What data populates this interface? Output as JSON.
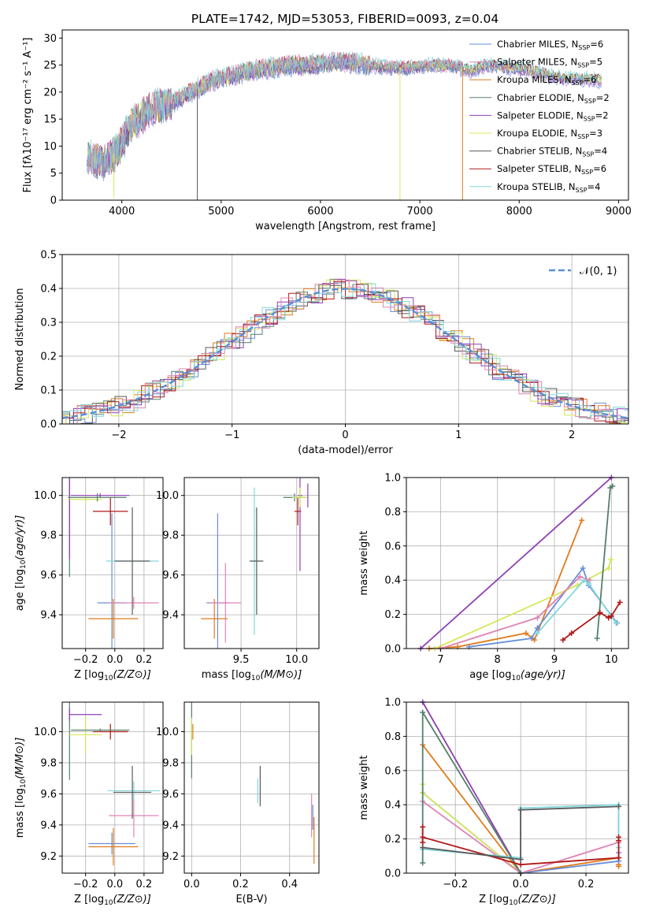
{
  "palette": [
    "#6a8fd8",
    "#e07b1a",
    "#55806a",
    "#8e3fb3",
    "#d6e85a",
    "#5a5a5a",
    "#b01818",
    "#e084b6",
    "#80d8dc"
  ],
  "chart_data": [
    {
      "id": "spectrum",
      "type": "line",
      "title": "PLATE=1742, MJD=53053, FIBERID=0093, z=0.04",
      "xlabel": "wavelength [Angstrom, rest frame]",
      "ylabel": "Flux [f",
      "ylabel_tex": "λ10⁻¹⁷ erg cm⁻² s⁻¹ A⁻¹]",
      "xlim": [
        3400,
        9100
      ],
      "ylim": [
        0,
        31.5
      ],
      "xticks": [
        4000,
        5000,
        6000,
        7000,
        8000,
        9000
      ],
      "yticks": [
        0,
        5,
        10,
        15,
        20,
        25,
        30
      ],
      "grid": false,
      "legend_position": "upper-right",
      "legend": [
        {
          "name": "Chabrier MILES, N",
          "sub": "SSP",
          "suffix": "=6",
          "color": "#6a8fd8"
        },
        {
          "name": "Salpeter MILES, N",
          "sub": "SSP",
          "suffix": "=5",
          "color": "#e084b6"
        },
        {
          "name": "Kroupa MILES, N",
          "sub": "SSP",
          "suffix": "=6",
          "color": "#e07b1a"
        },
        {
          "name": "Chabrier ELODIE, N",
          "sub": "SSP",
          "suffix": "=2",
          "color": "#55806a"
        },
        {
          "name": "Salpeter ELODIE, N",
          "sub": "SSP",
          "suffix": "=2",
          "color": "#8e3fb3"
        },
        {
          "name": "Kroupa ELODIE, N",
          "sub": "SSP",
          "suffix": "=3",
          "color": "#d6e85a"
        },
        {
          "name": "Chabrier STELIB, N",
          "sub": "SSP",
          "suffix": "=4",
          "color": "#5a5a5a"
        },
        {
          "name": "Salpeter STELIB, N",
          "sub": "SSP",
          "suffix": "=6",
          "color": "#b01818"
        },
        {
          "name": "Kroupa STELIB, N",
          "sub": "SSP",
          "suffix": "=4",
          "color": "#80d8dc"
        }
      ],
      "continuum_x": [
        3650,
        3800,
        3950,
        4100,
        4300,
        4500,
        4700,
        4900,
        5100,
        5300,
        5500,
        5700,
        5900,
        6100,
        6300,
        6500,
        6700,
        6900,
        7100,
        7300,
        7500,
        7700,
        7900,
        8100,
        8300,
        8500,
        8700,
        8830
      ],
      "continuum_y": [
        8,
        7,
        9,
        14,
        17,
        18,
        20,
        22,
        23,
        24,
        24.5,
        25,
        25,
        25.5,
        25.5,
        25,
        24.5,
        24.5,
        25,
        25,
        24,
        25,
        24.5,
        24,
        23,
        22.5,
        22.5,
        22
      ],
      "drops": [
        {
          "x": 4760,
          "y": 0,
          "series": 5
        },
        {
          "x": 6800,
          "y": 0,
          "series": 4
        },
        {
          "x": 7430,
          "y": 0,
          "series": 1
        },
        {
          "x": 3920,
          "y": 0.5,
          "series": 4
        }
      ]
    },
    {
      "id": "residuals",
      "type": "step",
      "xlabel": "(data-model)/error",
      "ylabel": "Normed distribution",
      "xlim": [
        -2.5,
        2.5
      ],
      "ylim": [
        0,
        0.5
      ],
      "xticks": [
        -2,
        -1,
        0,
        1,
        2
      ],
      "yticks": [
        0,
        0.1,
        0.2,
        0.3,
        0.4,
        0.5
      ],
      "grid": true,
      "legend_position": "upper-right",
      "legend": [
        {
          "name": "𝒩(0, 1)",
          "color": "#5a8ed6",
          "style": "dashed"
        }
      ],
      "bin_width": 0.1
    },
    {
      "id": "age-vs-Z",
      "type": "errorbar",
      "xlabel": "Z [log",
      "xlabel_tex": "10(Z/Z⊙)]",
      "ylabel": "age  [log",
      "ylabel_tex": "10(age/yr)]",
      "xlim": [
        -0.36,
        0.33
      ],
      "ylim": [
        9.23,
        10.09
      ],
      "xticks": [
        -0.2,
        0.0,
        0.2
      ],
      "yticks": [
        9.4,
        9.6,
        9.8,
        10.0
      ],
      "grid": true,
      "points": [
        {
          "x": -0.01,
          "y": 9.38,
          "xerr": 0.17,
          "yerr": 0.1,
          "series": 1
        },
        {
          "x": -0.02,
          "y": 9.46,
          "xerr": 0.1,
          "yerr": 0.45,
          "series": 0
        },
        {
          "x": 0.13,
          "y": 9.46,
          "xerr": 0.17,
          "yerr": 0.03,
          "series": 7
        },
        {
          "x": 0.12,
          "y": 9.67,
          "xerr": 0.18,
          "yerr": 0.01,
          "series": 8
        },
        {
          "x": 0.12,
          "y": 9.67,
          "xerr": 0.12,
          "yerr": 0.27,
          "series": 5
        },
        {
          "x": -0.03,
          "y": 9.92,
          "xerr": 0.12,
          "yerr": 0.07,
          "series": 6
        },
        {
          "x": -0.31,
          "y": 9.99,
          "xerr": 0.0,
          "yerr": 0.4,
          "series": 2
        },
        {
          "x": -0.31,
          "y": 10.0,
          "xerr": 0.0,
          "yerr": 0.32,
          "series": 3
        },
        {
          "x": -0.2,
          "y": 9.98,
          "xerr": 0.11,
          "yerr": 0.02,
          "series": 4
        },
        {
          "x": -0.1,
          "y": 10.0,
          "xerr": 0.2,
          "yerr": 0.01,
          "series": 3
        },
        {
          "x": -0.12,
          "y": 9.99,
          "xerr": 0.2,
          "yerr": 0.02,
          "series": 2
        }
      ]
    },
    {
      "id": "age-vs-mass",
      "type": "errorbar",
      "xlabel": "mass [log",
      "xlabel_tex": "10(M/M⊙)]",
      "xlim": [
        8.99,
        10.2
      ],
      "ylim": [
        9.23,
        10.09
      ],
      "xticks": [
        9.5,
        10.0
      ],
      "yticks": [
        9.4,
        9.6,
        9.8,
        10.0
      ],
      "grid": true,
      "points": [
        {
          "x": 9.26,
          "y": 9.38,
          "xerr": 0.12,
          "yerr": 0.1,
          "series": 1
        },
        {
          "x": 9.29,
          "y": 9.46,
          "xerr": 0.1,
          "yerr": 0.45,
          "series": 0
        },
        {
          "x": 9.36,
          "y": 9.46,
          "xerr": 0.14,
          "yerr": 0.2,
          "series": 7
        },
        {
          "x": 9.62,
          "y": 9.67,
          "xerr": 0.05,
          "yerr": 0.37,
          "series": 8
        },
        {
          "x": 9.64,
          "y": 9.67,
          "xerr": 0.06,
          "yerr": 0.27,
          "series": 5
        },
        {
          "x": 9.98,
          "y": 9.99,
          "xerr": 0.1,
          "yerr": 0.02,
          "series": 2
        },
        {
          "x": 10.01,
          "y": 9.92,
          "xerr": 0.03,
          "yerr": 0.07,
          "series": 6
        },
        {
          "x": 10.03,
          "y": 10.0,
          "xerr": 0.02,
          "yerr": 0.38,
          "series": 3
        },
        {
          "x": 10.03,
          "y": 9.99,
          "xerr": 0.07,
          "yerr": 0.05,
          "series": 4
        },
        {
          "x": 10.1,
          "y": 10.0,
          "xerr": 0.0,
          "yerr": 0.06,
          "series": 3
        }
      ]
    },
    {
      "id": "mass-weight-vs-age",
      "type": "line",
      "xlabel": "age  [log",
      "xlabel_tex": "10(age/yr)]",
      "ylabel": "mass weight",
      "xlim": [
        6.4,
        10.3
      ],
      "ylim": [
        0,
        1
      ],
      "xticks": [
        7,
        8,
        9,
        10
      ],
      "yticks": [
        0.0,
        0.2,
        0.4,
        0.6,
        0.8,
        1.0
      ],
      "grid": true,
      "series": [
        {
          "series": 3,
          "x": [
            6.65,
            10.0
          ],
          "y": [
            0.0,
            1.0
          ]
        },
        {
          "series": 1,
          "x": [
            6.8,
            7.3,
            8.5,
            8.65,
            9.48
          ],
          "y": [
            0.0,
            0.01,
            0.09,
            0.05,
            0.75
          ]
        },
        {
          "series": 0,
          "x": [
            7.5,
            8.6,
            8.7,
            9.5,
            9.6,
            10.1
          ],
          "y": [
            0.01,
            0.06,
            0.12,
            0.47,
            0.37,
            0.15
          ]
        },
        {
          "series": 4,
          "x": [
            6.9,
            9.4,
            9.95,
            9.99
          ],
          "y": [
            0.0,
            0.37,
            0.47,
            0.52
          ]
        },
        {
          "series": 7,
          "x": [
            7.0,
            8.7,
            9.45,
            9.62
          ],
          "y": [
            0.0,
            0.18,
            0.42,
            0.4
          ]
        },
        {
          "series": 8,
          "x": [
            8.7,
            9.52,
            9.6,
            10.08
          ],
          "y": [
            0.09,
            0.4,
            0.38,
            0.15
          ]
        },
        {
          "series": 2,
          "x": [
            9.75,
            9.98,
            10.02
          ],
          "y": [
            0.06,
            0.94,
            0.95
          ]
        },
        {
          "series": 6,
          "x": [
            9.15,
            9.3,
            9.8,
            9.95,
            10.0,
            10.15
          ],
          "y": [
            0.05,
            0.09,
            0.21,
            0.18,
            0.19,
            0.27
          ]
        }
      ]
    },
    {
      "id": "mass-vs-Z",
      "type": "errorbar",
      "xlabel": "Z [log",
      "xlabel_tex": "10(Z/Z⊙)]",
      "ylabel": "mass [log",
      "ylabel_tex": "10(M/M⊙)]",
      "xlim": [
        -0.36,
        0.33
      ],
      "ylim": [
        9.09,
        10.19
      ],
      "xticks": [
        -0.2,
        0.0,
        0.2
      ],
      "yticks": [
        9.2,
        9.4,
        9.6,
        9.8,
        10.0
      ],
      "grid": true,
      "points": [
        {
          "x": -0.02,
          "y": 9.28,
          "xerr": 0.16,
          "yerr": 0.07,
          "series": 0
        },
        {
          "x": -0.01,
          "y": 9.26,
          "xerr": 0.17,
          "yerr": 0.12,
          "series": 1
        },
        {
          "x": 0.13,
          "y": 9.46,
          "xerr": 0.17,
          "yerr": 0.14,
          "series": 7
        },
        {
          "x": 0.13,
          "y": 9.62,
          "xerr": 0.18,
          "yerr": 0.06,
          "series": 8
        },
        {
          "x": 0.12,
          "y": 9.61,
          "xerr": 0.13,
          "yerr": 0.17,
          "series": 5
        },
        {
          "x": -0.31,
          "y": 9.99,
          "xerr": 0.0,
          "yerr": 0.3,
          "series": 2
        },
        {
          "x": -0.31,
          "y": 10.11,
          "xerr": 0.0,
          "yerr": 0.04,
          "series": 3
        },
        {
          "x": -0.2,
          "y": 10.11,
          "xerr": 0.11,
          "yerr": 0.0,
          "series": 3
        },
        {
          "x": -0.2,
          "y": 9.98,
          "xerr": 0.11,
          "yerr": 0.12,
          "series": 4
        },
        {
          "x": -0.03,
          "y": 10.0,
          "xerr": 0.12,
          "yerr": 0.05,
          "series": 6
        },
        {
          "x": -0.1,
          "y": 10.01,
          "xerr": 0.2,
          "yerr": 0.01,
          "series": 2
        }
      ]
    },
    {
      "id": "mass-vs-EBV",
      "type": "errorbar",
      "xlabel": "E(B-V)",
      "xlim": [
        -0.03,
        0.52
      ],
      "ylim": [
        9.09,
        10.19
      ],
      "xticks": [
        0.0,
        0.2,
        0.4
      ],
      "yticks": [
        9.2,
        9.4,
        9.6,
        9.8,
        10.0
      ],
      "grid": true,
      "points": [
        {
          "x": 0.0,
          "y": 9.95,
          "xerr": 0.0,
          "yerr": 0.25,
          "series": 2
        },
        {
          "x": 0.005,
          "y": 10.0,
          "xerr": 0.0,
          "yerr": 0.05,
          "series": 1
        },
        {
          "x": 0.0,
          "y": 9.97,
          "xerr": 0.0,
          "yerr": 0.12,
          "series": 4
        },
        {
          "x": 0.28,
          "y": 9.65,
          "xerr": 0.0,
          "yerr": 0.13,
          "series": 5
        },
        {
          "x": 0.27,
          "y": 9.62,
          "xerr": 0.0,
          "yerr": 0.08,
          "series": 8
        },
        {
          "x": 0.49,
          "y": 9.46,
          "xerr": 0.0,
          "yerr": 0.14,
          "series": 7
        },
        {
          "x": 0.495,
          "y": 9.45,
          "xerr": 0.0,
          "yerr": 0.08,
          "series": 0
        },
        {
          "x": 0.5,
          "y": 9.3,
          "xerr": 0.0,
          "yerr": 0.15,
          "series": 1
        }
      ]
    },
    {
      "id": "mass-weight-vs-Z",
      "type": "line",
      "xlabel": "Z [log",
      "xlabel_tex": "10(Z/Z⊙)]",
      "ylabel": "mass weight",
      "xlim": [
        -0.35,
        0.33
      ],
      "ylim": [
        0,
        1
      ],
      "xticks": [
        -0.2,
        0.0,
        0.2
      ],
      "yticks": [
        0.0,
        0.2,
        0.4,
        0.6,
        0.8,
        1.0
      ],
      "grid": true,
      "series": [
        {
          "series": 3,
          "x": [
            -0.3,
            0.0
          ],
          "y": [
            1.0,
            0.0
          ]
        },
        {
          "series": 1,
          "x": [
            -0.3,
            0.0,
            0.3,
            0.3,
            0.3
          ],
          "y": [
            0.75,
            0.0,
            0.09,
            0.05,
            0.04
          ]
        },
        {
          "series": 0,
          "x": [
            -0.3,
            0.0,
            0.3,
            0.3
          ],
          "y": [
            0.47,
            0.0,
            0.07,
            0.12
          ]
        },
        {
          "series": 4,
          "x": [
            -0.3,
            -0.3,
            0.0
          ],
          "y": [
            0.52,
            0.47,
            0.0
          ]
        },
        {
          "series": 7,
          "x": [
            -0.3,
            0.0,
            0.3,
            0.3
          ],
          "y": [
            0.42,
            0.0,
            0.18,
            0.4
          ]
        },
        {
          "series": 8,
          "x": [
            -0.3,
            0.0,
            0.0,
            0.3,
            0.3
          ],
          "y": [
            0.14,
            0.09,
            0.38,
            0.4,
            0.15
          ]
        },
        {
          "series": 2,
          "x": [
            -0.3,
            -0.3,
            0.0
          ],
          "y": [
            0.06,
            0.94,
            0.0
          ]
        },
        {
          "series": 6,
          "x": [
            -0.3,
            -0.3,
            -0.3,
            0.0,
            0.3,
            0.3,
            0.3
          ],
          "y": [
            0.27,
            0.18,
            0.21,
            0.05,
            0.09,
            0.19,
            0.21
          ]
        },
        {
          "series": 5,
          "x": [
            -0.3,
            0.0,
            0.0,
            0.3
          ],
          "y": [
            0.15,
            0.08,
            0.37,
            0.39
          ]
        }
      ]
    }
  ]
}
